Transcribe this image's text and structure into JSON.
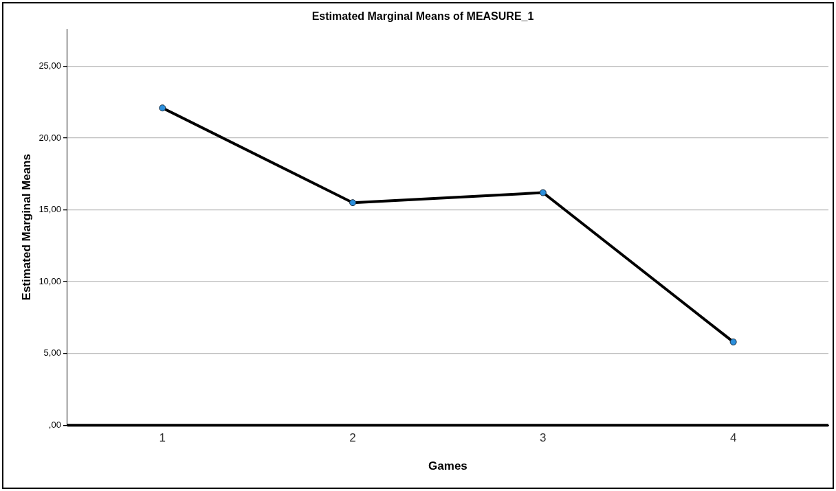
{
  "chart_data": {
    "type": "line",
    "title": "Estimated Marginal Means of MEASURE_1",
    "xlabel": "Games",
    "ylabel": "Estimated Marginal Means",
    "categories": [
      "1",
      "2",
      "3",
      "4"
    ],
    "series": [
      {
        "color": "#000000",
        "values": [
          22.1,
          15.5,
          16.2,
          5.8
        ]
      }
    ],
    "ylim": [
      0,
      27.6
    ],
    "yticks": [
      {
        "value": 0,
        "label": ",00"
      },
      {
        "value": 5,
        "label": "5,00"
      },
      {
        "value": 10,
        "label": "10,00"
      },
      {
        "value": 15,
        "label": "15,00"
      },
      {
        "value": 20,
        "label": "20,00"
      },
      {
        "value": 25,
        "label": "25,00"
      }
    ],
    "grid": "y",
    "legend": false,
    "marker": "circle",
    "line_style": "solid"
  }
}
